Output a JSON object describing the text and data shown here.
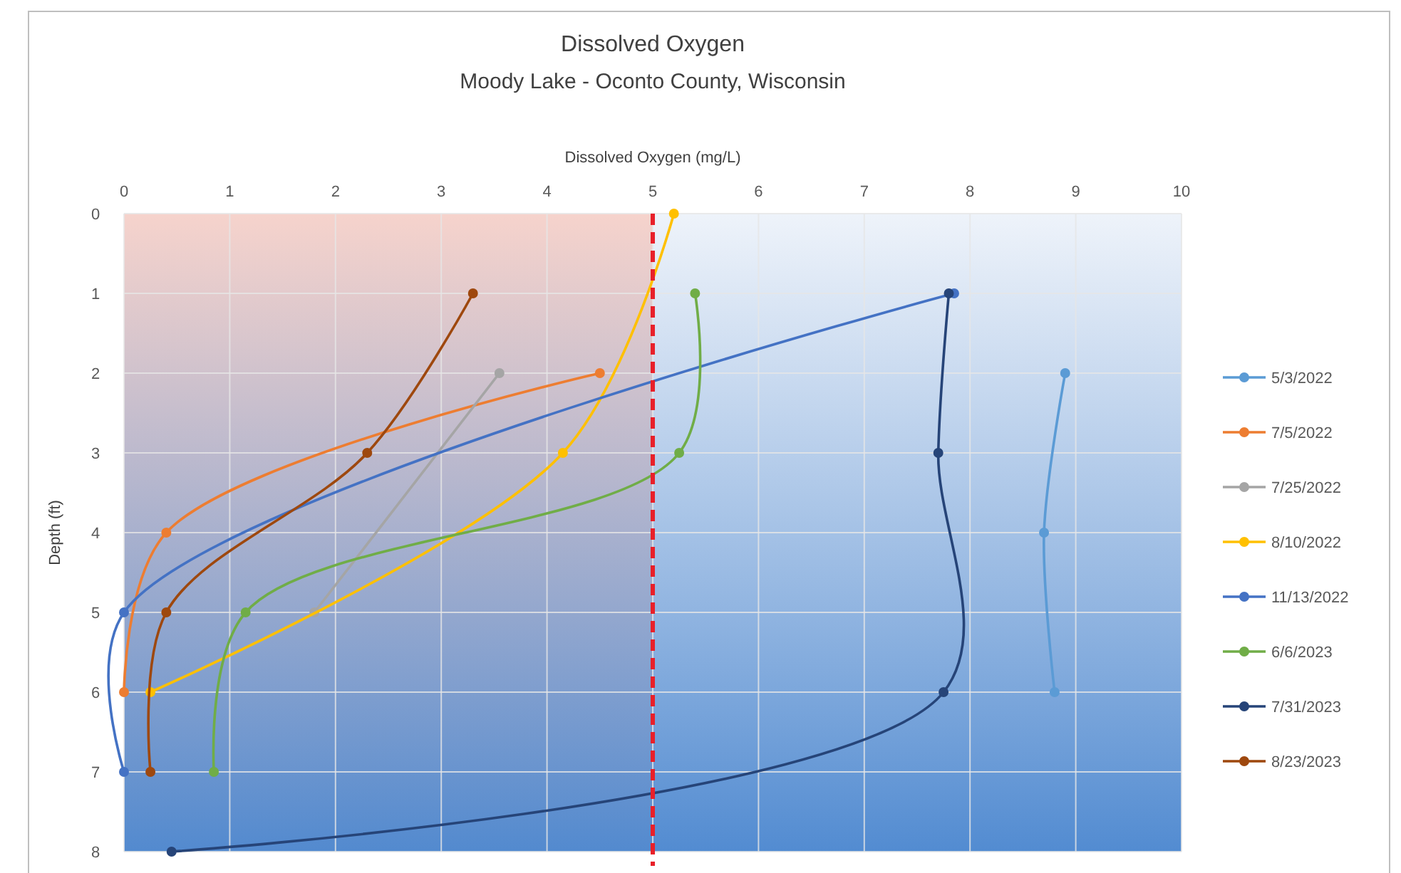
{
  "chart_data": {
    "type": "line",
    "title": "Dissolved Oxygen",
    "subtitle": "Moody Lake - Oconto County, Wisconsin",
    "xlabel": "Dissolved Oxygen (mg/L)",
    "ylabel": "Depth (ft)",
    "xlim": [
      0,
      10
    ],
    "xticks": [
      0,
      1,
      2,
      3,
      4,
      5,
      6,
      7,
      8,
      9,
      10
    ],
    "ylim": [
      8,
      0
    ],
    "yticks": [
      0,
      1,
      2,
      3,
      4,
      5,
      6,
      7,
      8
    ],
    "grid": true,
    "legend": "right",
    "marker": "circle",
    "line_style": "solid",
    "ref_lines": [
      {
        "axis": "x",
        "value": 5,
        "color": "#e8202a",
        "line_style": "dashed"
      }
    ],
    "bands": [
      {
        "axis": "x",
        "from": 0,
        "to": 5,
        "color": "#f6d3cc"
      },
      {
        "axis": "x",
        "from": 5,
        "to": 10,
        "color": "#eef3fa"
      }
    ],
    "series": [
      {
        "name": "5/3/2022",
        "color": "#5b9bd5",
        "x": [
          8.9,
          8.7,
          8.8
        ],
        "values": [
          2,
          4,
          6
        ]
      },
      {
        "name": "7/5/2022",
        "color": "#ed7d31",
        "x": [
          4.5,
          0.4,
          0
        ],
        "values": [
          2,
          4,
          6
        ]
      },
      {
        "name": "7/25/2022",
        "color": "#a5a5a5",
        "x": [
          3.55,
          1.8
        ],
        "values": [
          2,
          5
        ]
      },
      {
        "name": "8/10/2022",
        "color": "#ffc000",
        "x": [
          5.2,
          4.15,
          0.25
        ],
        "values": [
          0,
          3,
          6
        ]
      },
      {
        "name": "11/13/2022",
        "color": "#4472c4",
        "x": [
          7.85,
          0,
          0
        ],
        "values": [
          1,
          5,
          7
        ]
      },
      {
        "name": "6/6/2023",
        "color": "#70ad47",
        "x": [
          5.4,
          5.25,
          1.15,
          0.85
        ],
        "values": [
          1,
          3,
          5,
          7
        ]
      },
      {
        "name": "7/31/2023",
        "color": "#264478",
        "x": [
          7.8,
          7.7,
          7.75,
          0.45
        ],
        "values": [
          1,
          3,
          6,
          8
        ]
      },
      {
        "name": "8/23/2023",
        "color": "#9e480e",
        "x": [
          3.3,
          2.3,
          0.4,
          0.25
        ],
        "values": [
          1,
          3,
          5,
          7
        ]
      }
    ]
  }
}
